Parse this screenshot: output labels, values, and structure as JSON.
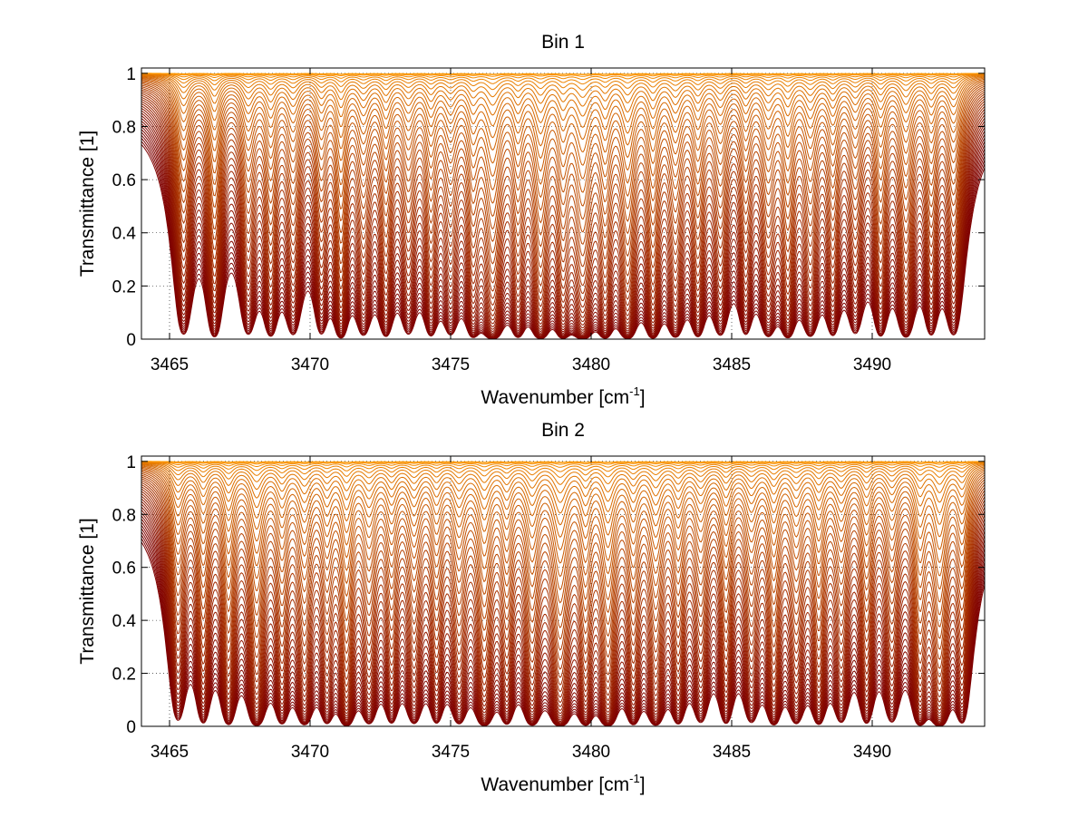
{
  "chart_data": [
    {
      "type": "line",
      "title": "Bin 1",
      "xlabel": {
        "main": "Wavenumber [cm",
        "sup": "-1",
        "end": "]"
      },
      "ylabel": "Transmittance [1]",
      "xlim": [
        3464,
        3494
      ],
      "ylim": [
        0,
        1.02
      ],
      "xticks": [
        3465,
        3470,
        3475,
        3480,
        3485,
        3490
      ],
      "yticks": [
        0,
        0.2,
        0.4,
        0.6,
        0.8,
        1
      ],
      "yticklabels": [
        "0",
        "0.2",
        "0.4",
        "0.6",
        "0.8",
        "1"
      ],
      "grid": "dotted",
      "n_series": 44,
      "series_color_range": [
        "#7f0000",
        "#ff9900"
      ],
      "absorption_lines": [
        {
          "x": 3465.5,
          "depth": 0.6,
          "width": 0.25
        },
        {
          "x": 3466.6,
          "depth": 0.7,
          "width": 0.22
        },
        {
          "x": 3467.8,
          "depth": 0.55,
          "width": 0.25
        },
        {
          "x": 3468.6,
          "depth": 0.6,
          "width": 0.22
        },
        {
          "x": 3469.4,
          "depth": 0.55,
          "width": 0.25
        },
        {
          "x": 3470.4,
          "depth": 0.5,
          "width": 0.22
        },
        {
          "x": 3471.1,
          "depth": 0.75,
          "width": 0.2
        },
        {
          "x": 3471.9,
          "depth": 0.55,
          "width": 0.25
        },
        {
          "x": 3472.7,
          "depth": 0.6,
          "width": 0.22
        },
        {
          "x": 3473.5,
          "depth": 0.5,
          "width": 0.25
        },
        {
          "x": 3474.3,
          "depth": 0.55,
          "width": 0.22
        },
        {
          "x": 3475.0,
          "depth": 0.5,
          "width": 0.25
        },
        {
          "x": 3475.8,
          "depth": 0.6,
          "width": 0.22
        },
        {
          "x": 3476.5,
          "depth": 0.95,
          "width": 0.28
        },
        {
          "x": 3477.4,
          "depth": 0.6,
          "width": 0.22
        },
        {
          "x": 3478.2,
          "depth": 0.85,
          "width": 0.25
        },
        {
          "x": 3479.0,
          "depth": 0.7,
          "width": 0.22
        },
        {
          "x": 3479.7,
          "depth": 0.95,
          "width": 0.28
        },
        {
          "x": 3480.5,
          "depth": 0.7,
          "width": 0.22
        },
        {
          "x": 3481.3,
          "depth": 0.85,
          "width": 0.25
        },
        {
          "x": 3482.2,
          "depth": 0.75,
          "width": 0.22
        },
        {
          "x": 3483.0,
          "depth": 0.65,
          "width": 0.25
        },
        {
          "x": 3483.8,
          "depth": 0.6,
          "width": 0.22
        },
        {
          "x": 3484.6,
          "depth": 0.55,
          "width": 0.25
        },
        {
          "x": 3485.5,
          "depth": 0.5,
          "width": 0.22
        },
        {
          "x": 3486.3,
          "depth": 0.6,
          "width": 0.25
        },
        {
          "x": 3487.0,
          "depth": 0.7,
          "width": 0.22
        },
        {
          "x": 3487.8,
          "depth": 0.6,
          "width": 0.25
        },
        {
          "x": 3488.6,
          "depth": 0.55,
          "width": 0.22
        },
        {
          "x": 3489.4,
          "depth": 0.5,
          "width": 0.25
        },
        {
          "x": 3490.3,
          "depth": 0.6,
          "width": 0.22
        },
        {
          "x": 3491.2,
          "depth": 0.7,
          "width": 0.25
        },
        {
          "x": 3492.1,
          "depth": 0.55,
          "width": 0.22
        },
        {
          "x": 3492.9,
          "depth": 0.6,
          "width": 0.25
        }
      ]
    },
    {
      "type": "line",
      "title": "Bin 2",
      "xlabel": {
        "main": "Wavenumber [cm",
        "sup": "-1",
        "end": "]"
      },
      "ylabel": "Transmittance [1]",
      "xlim": [
        3464,
        3494
      ],
      "ylim": [
        0,
        1.02
      ],
      "xticks": [
        3465,
        3470,
        3475,
        3480,
        3485,
        3490
      ],
      "yticks": [
        0,
        0.2,
        0.4,
        0.6,
        0.8,
        1
      ],
      "yticklabels": [
        "0",
        "0.2",
        "0.4",
        "0.6",
        "0.8",
        "1"
      ],
      "grid": "dotted",
      "n_series": 44,
      "series_color_range": [
        "#7f0000",
        "#ff9900"
      ],
      "absorption_lines": [
        {
          "x": 3465.3,
          "depth": 0.55,
          "width": 0.25
        },
        {
          "x": 3466.2,
          "depth": 0.6,
          "width": 0.22
        },
        {
          "x": 3467.1,
          "depth": 0.7,
          "width": 0.22
        },
        {
          "x": 3468.1,
          "depth": 0.85,
          "width": 0.25
        },
        {
          "x": 3469.0,
          "depth": 0.6,
          "width": 0.22
        },
        {
          "x": 3469.8,
          "depth": 0.7,
          "width": 0.25
        },
        {
          "x": 3470.6,
          "depth": 0.55,
          "width": 0.22
        },
        {
          "x": 3471.3,
          "depth": 0.85,
          "width": 0.22
        },
        {
          "x": 3472.1,
          "depth": 0.6,
          "width": 0.25
        },
        {
          "x": 3472.9,
          "depth": 0.55,
          "width": 0.22
        },
        {
          "x": 3473.7,
          "depth": 0.6,
          "width": 0.25
        },
        {
          "x": 3474.5,
          "depth": 0.55,
          "width": 0.22
        },
        {
          "x": 3475.3,
          "depth": 0.6,
          "width": 0.25
        },
        {
          "x": 3476.2,
          "depth": 0.85,
          "width": 0.25
        },
        {
          "x": 3477.0,
          "depth": 0.6,
          "width": 0.22
        },
        {
          "x": 3477.9,
          "depth": 0.75,
          "width": 0.25
        },
        {
          "x": 3478.9,
          "depth": 0.95,
          "width": 0.28
        },
        {
          "x": 3479.8,
          "depth": 0.7,
          "width": 0.22
        },
        {
          "x": 3480.6,
          "depth": 0.9,
          "width": 0.25
        },
        {
          "x": 3481.5,
          "depth": 0.65,
          "width": 0.22
        },
        {
          "x": 3482.3,
          "depth": 0.75,
          "width": 0.25
        },
        {
          "x": 3483.1,
          "depth": 0.6,
          "width": 0.22
        },
        {
          "x": 3483.9,
          "depth": 0.55,
          "width": 0.25
        },
        {
          "x": 3484.8,
          "depth": 0.6,
          "width": 0.22
        },
        {
          "x": 3485.7,
          "depth": 0.55,
          "width": 0.25
        },
        {
          "x": 3486.5,
          "depth": 0.7,
          "width": 0.22
        },
        {
          "x": 3487.3,
          "depth": 0.6,
          "width": 0.25
        },
        {
          "x": 3488.1,
          "depth": 0.65,
          "width": 0.22
        },
        {
          "x": 3488.9,
          "depth": 0.55,
          "width": 0.25
        },
        {
          "x": 3489.8,
          "depth": 0.6,
          "width": 0.22
        },
        {
          "x": 3490.7,
          "depth": 0.55,
          "width": 0.25
        },
        {
          "x": 3491.7,
          "depth": 0.75,
          "width": 0.22
        },
        {
          "x": 3492.4,
          "depth": 0.95,
          "width": 0.25
        },
        {
          "x": 3493.2,
          "depth": 0.6,
          "width": 0.22
        }
      ]
    }
  ]
}
